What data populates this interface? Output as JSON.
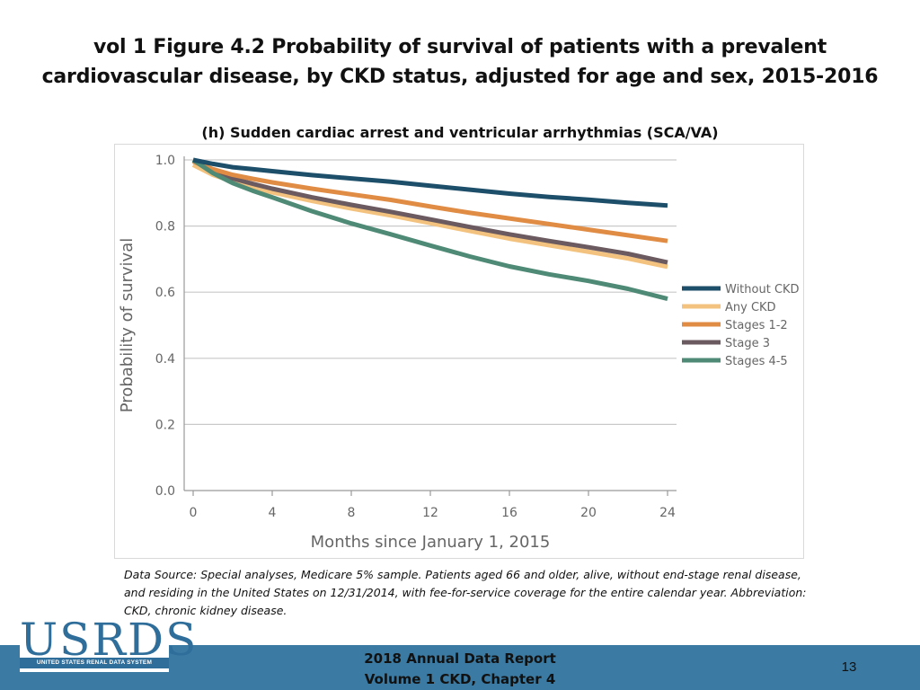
{
  "slide": {
    "title_line1": "vol 1 Figure 4.2 Probability of survival of patients with a prevalent",
    "title_line2": "cardiovascular disease, by CKD status, adjusted for age and sex, 2015-2016",
    "subtitle": "(h) Sudden cardiac arrest and ventricular arrhythmias (SCA/VA)",
    "data_source": "Data Source: Special analyses, Medicare 5% sample. Patients aged 66 and older, alive, without end-stage renal disease, and residing in the United States on 12/31/2014, with fee-for-service coverage for the entire calendar year. Abbreviation: CKD, chronic kidney disease.",
    "footer_line1": "2018 Annual Data Report",
    "footer_line2": "Volume 1 CKD, Chapter 4",
    "page_number": "13",
    "logo_text": "USRDS",
    "logo_subtext": "UNITED STATES RENAL DATA SYSTEM",
    "footer_color": "#3a7aa3",
    "logo_color": "#2f6d9a"
  },
  "chart_data": {
    "type": "line",
    "title": "(h) Sudden cardiac arrest and ventricular arrhythmias (SCA/VA)",
    "xlabel": "Months since January 1, 2015",
    "ylabel": "Probability of survival",
    "xlim": [
      0,
      24
    ],
    "ylim": [
      0.0,
      1.0
    ],
    "x_ticks": [
      0,
      4,
      8,
      12,
      16,
      20,
      24
    ],
    "y_ticks": [
      "0.0",
      "0.2",
      "0.4",
      "0.6",
      "0.8",
      "1.0"
    ],
    "grid": true,
    "legend_position": "right",
    "x": [
      0,
      1,
      2,
      3,
      4,
      6,
      8,
      10,
      12,
      14,
      16,
      18,
      20,
      22,
      24
    ],
    "series": [
      {
        "name": "Without CKD",
        "color": "#1d4e6a",
        "values": [
          1.0,
          0.988,
          0.978,
          0.972,
          0.966,
          0.954,
          0.944,
          0.934,
          0.922,
          0.91,
          0.898,
          0.888,
          0.88,
          0.87,
          0.862
        ]
      },
      {
        "name": "Any CKD",
        "color": "#f3c27e",
        "values": [
          0.985,
          0.955,
          0.935,
          0.917,
          0.902,
          0.876,
          0.853,
          0.832,
          0.809,
          0.785,
          0.762,
          0.742,
          0.722,
          0.702,
          0.677
        ]
      },
      {
        "name": "Stages 1-2",
        "color": "#e08c45",
        "values": [
          0.995,
          0.972,
          0.955,
          0.943,
          0.932,
          0.913,
          0.896,
          0.879,
          0.859,
          0.84,
          0.823,
          0.806,
          0.789,
          0.772,
          0.755
        ]
      },
      {
        "name": "Stage 3",
        "color": "#6b5a5f",
        "values": [
          0.998,
          0.965,
          0.944,
          0.928,
          0.913,
          0.887,
          0.864,
          0.843,
          0.82,
          0.797,
          0.775,
          0.755,
          0.736,
          0.716,
          0.69
        ]
      },
      {
        "name": "Stages 4-5",
        "color": "#4e8a76",
        "values": [
          1.0,
          0.96,
          0.93,
          0.907,
          0.887,
          0.845,
          0.808,
          0.775,
          0.741,
          0.708,
          0.678,
          0.654,
          0.634,
          0.61,
          0.58
        ]
      }
    ]
  }
}
